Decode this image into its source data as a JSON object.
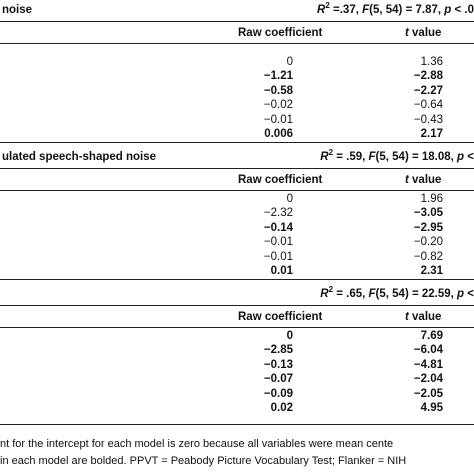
{
  "sections": [
    {
      "title": "noise",
      "fit": [
        {
          "text": "R",
          "italic": true
        },
        {
          "text": "2",
          "sup": true
        },
        {
          "text": " =.37, "
        },
        {
          "text": "F",
          "italic": true
        },
        {
          "text": "(5, 54) = 7.87, "
        },
        {
          "text": "p",
          "italic": true
        },
        {
          "text": " < .0"
        }
      ],
      "header": [
        "Raw coefficient",
        {
          "text": "t",
          "rest": " value"
        }
      ],
      "rows": [
        {
          "cells": [
            "0",
            "1.36"
          ],
          "bold": [
            false,
            false
          ]
        },
        {
          "cells": [
            "−1.21",
            "−2.88"
          ],
          "bold": [
            true,
            true
          ]
        },
        {
          "cells": [
            "−0.58",
            "−2.27"
          ],
          "bold": [
            true,
            true
          ]
        },
        {
          "cells": [
            "−0.02",
            "−0.64"
          ],
          "bold": [
            false,
            false
          ]
        },
        {
          "cells": [
            "−0.01",
            "−0.43"
          ],
          "bold": [
            false,
            false
          ]
        },
        {
          "cells": [
            "0.006",
            "2.17"
          ],
          "bold": [
            true,
            true
          ]
        }
      ]
    },
    {
      "title": "ulated speech-shaped noise",
      "fit": [
        {
          "text": "R",
          "italic": true
        },
        {
          "text": "2",
          "sup": true
        },
        {
          "text": " = .59, "
        },
        {
          "text": "F",
          "italic": true
        },
        {
          "text": "(5, 54) = 18.08, "
        },
        {
          "text": "p",
          "italic": true
        },
        {
          "text": " <"
        }
      ],
      "header": [
        "Raw coefficient",
        {
          "text": "t",
          "rest": " value"
        }
      ],
      "rows": [
        {
          "cells": [
            "0",
            "1.96"
          ],
          "bold": [
            false,
            false
          ]
        },
        {
          "cells": [
            "−2.32",
            "−3.05"
          ],
          "bold": [
            false,
            true
          ]
        },
        {
          "cells": [
            "−0.14",
            "−2.95"
          ],
          "bold": [
            true,
            true
          ]
        },
        {
          "cells": [
            "−0.01",
            "−0.20"
          ],
          "bold": [
            false,
            false
          ]
        },
        {
          "cells": [
            "−0.01",
            "−0.82"
          ],
          "bold": [
            false,
            false
          ]
        },
        {
          "cells": [
            "0.01",
            "2.31"
          ],
          "bold": [
            true,
            true
          ]
        }
      ]
    },
    {
      "title": "",
      "fit": [
        {
          "text": "R",
          "italic": true
        },
        {
          "text": "2",
          "sup": true
        },
        {
          "text": " = .65, "
        },
        {
          "text": "F",
          "italic": true
        },
        {
          "text": "(5, 54) = 22.59, "
        },
        {
          "text": "p",
          "italic": true
        },
        {
          "text": " <"
        }
      ],
      "header": [
        "Raw coefficient",
        {
          "text": "t",
          "rest": " value"
        }
      ],
      "rows": [
        {
          "cells": [
            "0",
            "7.69"
          ],
          "bold": [
            true,
            true
          ]
        },
        {
          "cells": [
            "−2.85",
            "−6.04"
          ],
          "bold": [
            true,
            true
          ]
        },
        {
          "cells": [
            "−0.13",
            "−4.81"
          ],
          "bold": [
            true,
            true
          ]
        },
        {
          "cells": [
            "−0.07",
            "−2.04"
          ],
          "bold": [
            true,
            true
          ]
        },
        {
          "cells": [
            "−0.09",
            "−2.05"
          ],
          "bold": [
            true,
            true
          ]
        },
        {
          "cells": [
            "0.02",
            "4.95"
          ],
          "bold": [
            true,
            true
          ]
        }
      ]
    }
  ],
  "notes": [
    "nt for the intercept for each model is zero because all variables were mean cente",
    "in each model are bolded. PPVT = Peabody Picture Vocabulary Test; Flanker = NIH"
  ]
}
